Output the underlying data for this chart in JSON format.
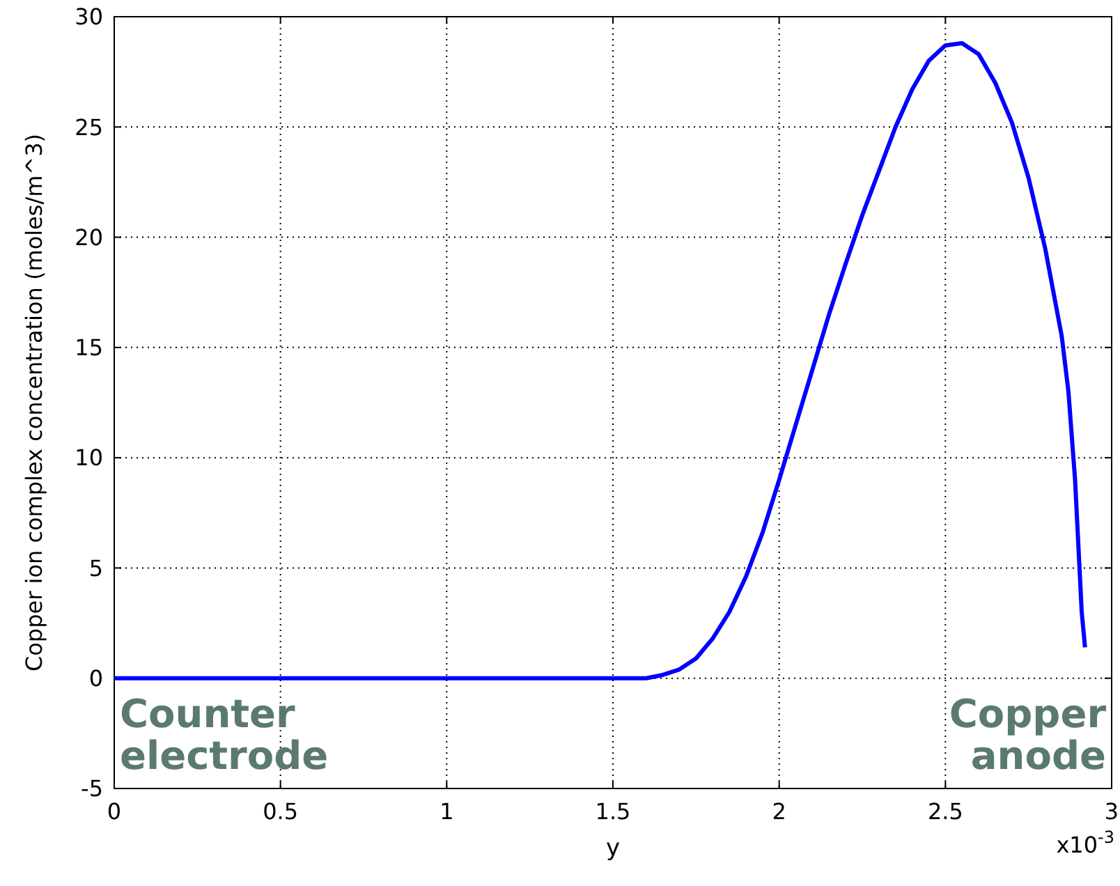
{
  "chart_data": {
    "type": "line",
    "xlabel": "y",
    "ylabel": "Copper ion complex concentration (moles/m^3)",
    "x": [
      0,
      0.5,
      1,
      1.5,
      1.6,
      1.65,
      1.7,
      1.75,
      1.8,
      1.85,
      1.9,
      1.95,
      2,
      2.05,
      2.1,
      2.15,
      2.2,
      2.25,
      2.3,
      2.35,
      2.4,
      2.45,
      2.5,
      2.55,
      2.6,
      2.65,
      2.7,
      2.75,
      2.8,
      2.85,
      2.87,
      2.89,
      2.9,
      2.91,
      2.92
    ],
    "series": [
      {
        "color": "#0000ff",
        "values": [
          0,
          0,
          0,
          0,
          0,
          0.15,
          0.4,
          0.9,
          1.8,
          3,
          4.6,
          6.6,
          9,
          11.5,
          14,
          16.5,
          18.8,
          21,
          23,
          25,
          26.7,
          28,
          28.7,
          28.8,
          28.3,
          27,
          25.2,
          22.7,
          19.5,
          15.5,
          13,
          9,
          6,
          3,
          1.4
        ]
      }
    ],
    "xlim": [
      0,
      3
    ],
    "ylim": [
      -5,
      30
    ],
    "xticks": [
      0,
      0.5,
      1,
      1.5,
      2,
      2.5,
      3
    ],
    "yticks": [
      -5,
      0,
      5,
      10,
      15,
      20,
      25,
      30
    ],
    "grid": true,
    "marker": "none",
    "line_style": "solid",
    "annotations": [
      "Counter electrode",
      "Copper anode",
      "x10$^{-3}$"
    ]
  }
}
